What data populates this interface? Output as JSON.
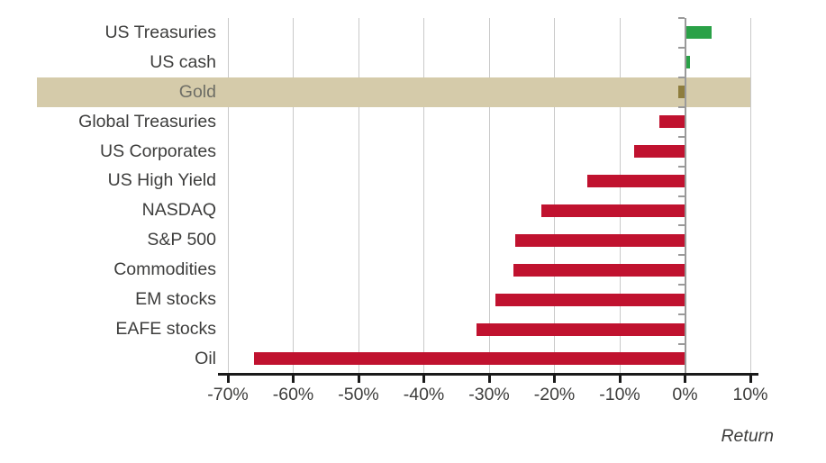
{
  "chart_data": {
    "type": "bar",
    "orientation": "horizontal",
    "title": "",
    "xlabel": "Return",
    "categories": [
      "US Treasuries",
      "US cash",
      "Gold",
      "Global Treasuries",
      "US Corporates",
      "US High Yield",
      "NASDAQ",
      "S&P 500",
      "Commodities",
      "EM stocks",
      "EAFE stocks",
      "Oil"
    ],
    "values": [
      4,
      0.7,
      -1,
      -4,
      -7.8,
      -15,
      -22,
      -26,
      -26.3,
      -29,
      -32,
      -66
    ],
    "value_unit": "%",
    "highlighted_category": "Gold",
    "x_ticks": [
      "-70%",
      "-60%",
      "-50%",
      "-40%",
      "-30%",
      "-20%",
      "-10%",
      "0%",
      "10%"
    ],
    "xlim": [
      -70,
      10
    ],
    "grid": true,
    "legend": "none",
    "colors": {
      "positive_bar": "#2aa147",
      "negative_bar": "#c0122f",
      "gold_bar": "#8e7d3d",
      "highlight_band": "#d5cbaa",
      "gold_label_text": "#6e6e66",
      "label_text": "#3d3d3c",
      "gridline": "#c9c9c9",
      "zero_axis": "#9a9a9a",
      "x_axis": "#1a1a1a",
      "background": "#ffffff"
    }
  }
}
